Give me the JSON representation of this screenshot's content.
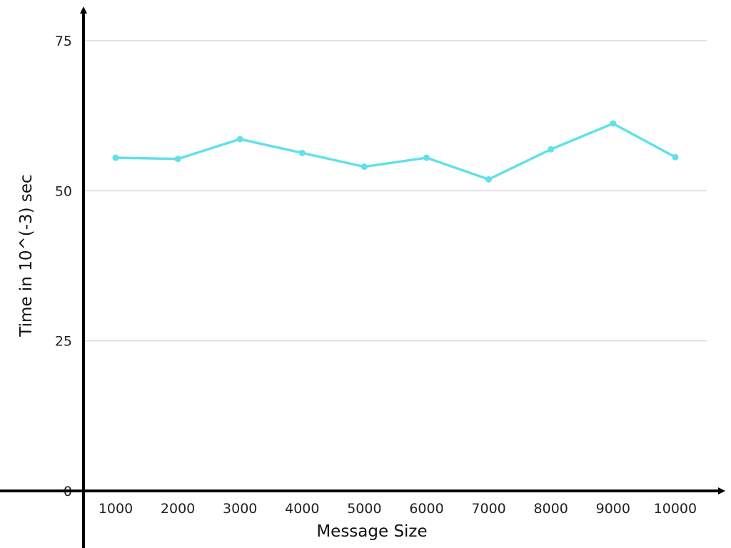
{
  "chart_data": {
    "type": "line",
    "title": "",
    "xlabel": "Message Size",
    "ylabel": "Time in 10^(-3) sec",
    "categories": [
      "1000",
      "2000",
      "3000",
      "4000",
      "5000",
      "6000",
      "7000",
      "8000",
      "9000",
      "10000"
    ],
    "series": [
      {
        "values": [
          55.5,
          55.3,
          58.6,
          56.3,
          54.0,
          55.5,
          51.9,
          56.9,
          61.2,
          55.6
        ]
      }
    ],
    "ylim": [
      0,
      75
    ],
    "yticks": [
      "0",
      "25",
      "50",
      "75"
    ],
    "grid": true,
    "legend": "none",
    "colors": {
      "line": "#62e1e6",
      "axis": "#000000",
      "grid": "#d9d9d9"
    }
  }
}
